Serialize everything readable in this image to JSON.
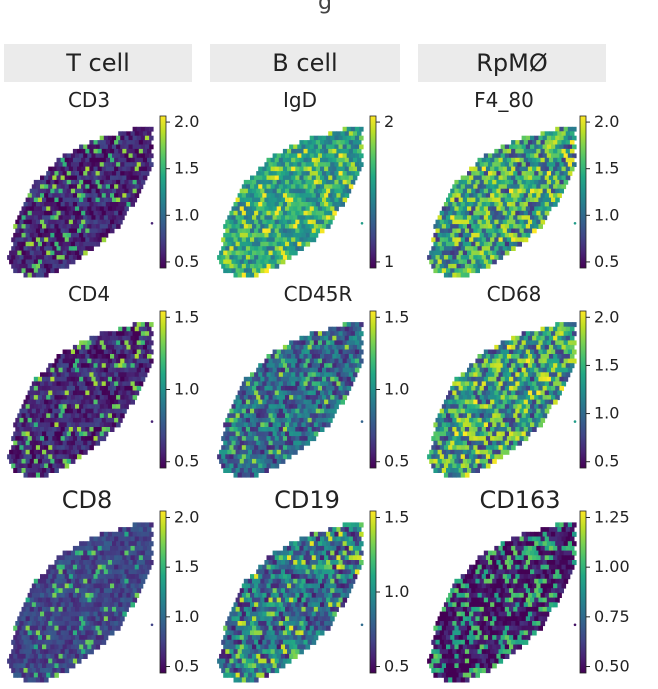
{
  "top_fragment": "g",
  "columns": [
    "T cell",
    "B cell",
    "RpMØ"
  ],
  "panels": [
    {
      "title": "CD3",
      "ticks": [
        "2.0",
        "1.5",
        "1.0",
        "0.5"
      ],
      "pattern": "sparse",
      "seed": 3
    },
    {
      "title": "IgD",
      "ticks": [
        "2",
        "1"
      ],
      "pattern": "bright",
      "seed": 7
    },
    {
      "title": "F4_80",
      "ticks": [
        "2.0",
        "1.5",
        "1.0",
        "0.5"
      ],
      "pattern": "mixed",
      "seed": 11
    },
    {
      "title": "CD4",
      "ticks": [
        "1.5",
        "1.0",
        "0.5"
      ],
      "pattern": "sparse",
      "seed": 13
    },
    {
      "title": "CD45R",
      "ticks": [
        "1.5",
        "1.0",
        "0.5"
      ],
      "pattern": "medium",
      "seed": 17
    },
    {
      "title": "CD68",
      "ticks": [
        "2.0",
        "1.5",
        "1.0",
        "0.5"
      ],
      "pattern": "mixed",
      "seed": 19
    },
    {
      "title": "CD8",
      "ticks": [
        "2.0",
        "1.5",
        "1.0",
        "0.5"
      ],
      "pattern": "sparse2",
      "seed": 23
    },
    {
      "title": "CD19",
      "ticks": [
        "1.5",
        "1.0",
        "0.5"
      ],
      "pattern": "medium2",
      "seed": 29
    },
    {
      "title": "CD163",
      "ticks": [
        "1.25",
        "1.00",
        "0.75",
        "0.50"
      ],
      "pattern": "dark",
      "seed": 31
    }
  ],
  "colormap": "viridis"
}
